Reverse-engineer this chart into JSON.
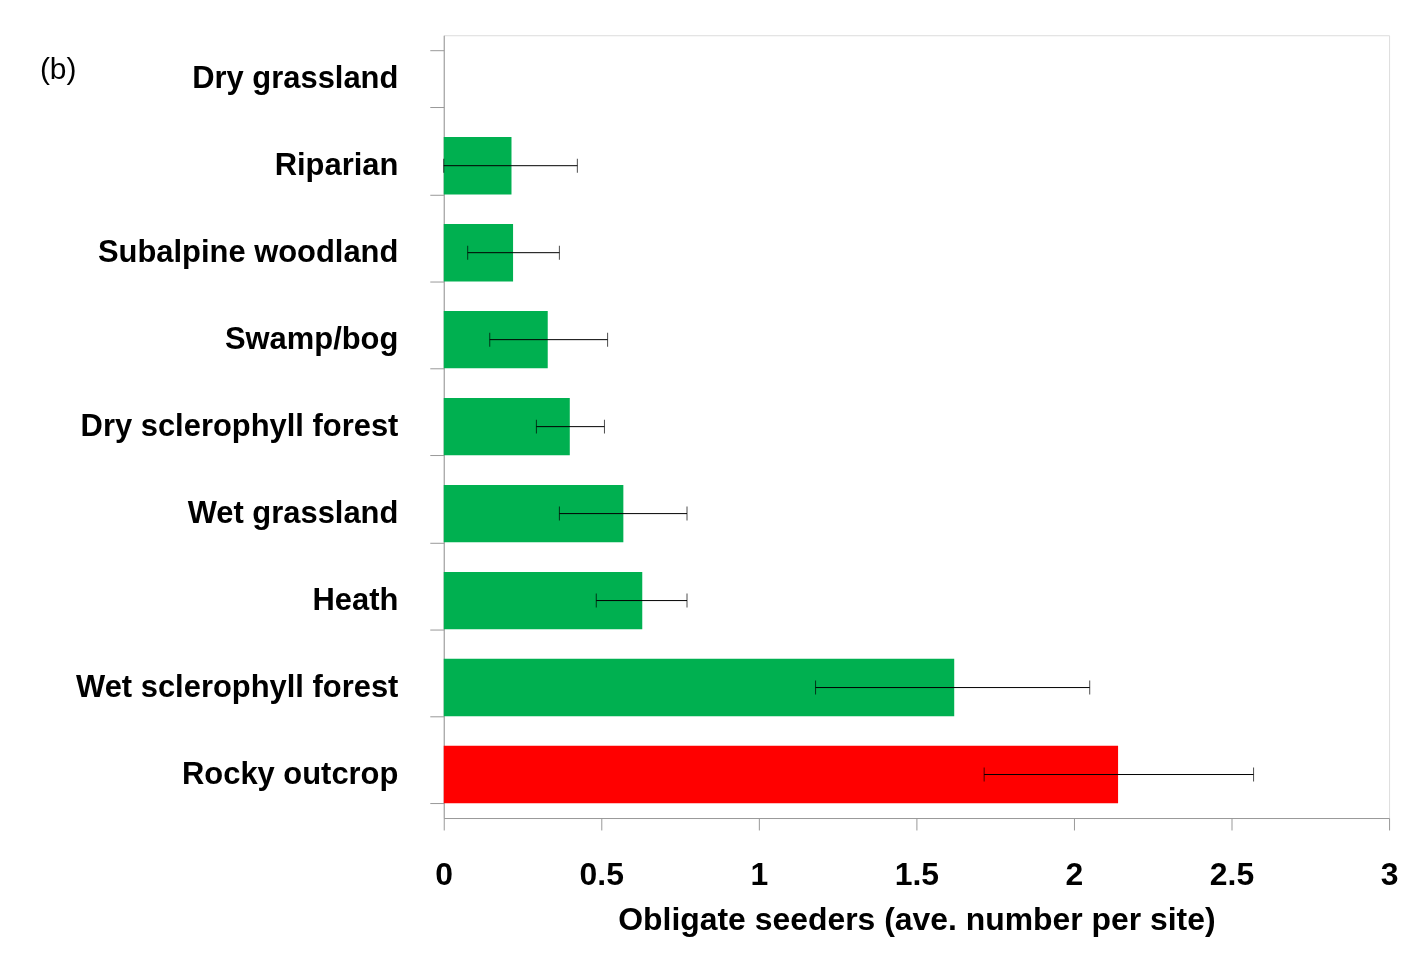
{
  "chart_data": {
    "type": "bar",
    "orientation": "horizontal",
    "xlabel": "Obligate seeders (ave. number per site)",
    "annotations": [
      "(b)"
    ],
    "categories": [
      "Dry grassland",
      "Riparian",
      "Subalpine woodland",
      "Swamp/bog",
      "Dry sclerophyll forest",
      "Wet grassland",
      "Heath",
      "Wet sclerophyll forest",
      "Rocky outcrop"
    ],
    "values": [
      0,
      0.215,
      0.22,
      0.33,
      0.4,
      0.57,
      0.63,
      1.62,
      2.14
    ],
    "errors": [
      null,
      [
        0,
        0.424
      ],
      [
        0.076,
        0.367
      ],
      [
        0.146,
        0.52
      ],
      [
        0.294,
        0.51
      ],
      [
        0.367,
        0.772
      ],
      [
        0.484,
        0.772
      ],
      [
        1.18,
        2.05
      ],
      [
        1.715,
        2.57
      ]
    ],
    "colors": [
      "#00b050",
      "#00b050",
      "#00b050",
      "#00b050",
      "#00b050",
      "#00b050",
      "#00b050",
      "#00b050",
      "#ff0000"
    ],
    "xlim": [
      0,
      3
    ],
    "xticks": [
      0,
      0.5,
      1,
      1.5,
      2,
      2.5,
      3
    ],
    "grid": false
  }
}
